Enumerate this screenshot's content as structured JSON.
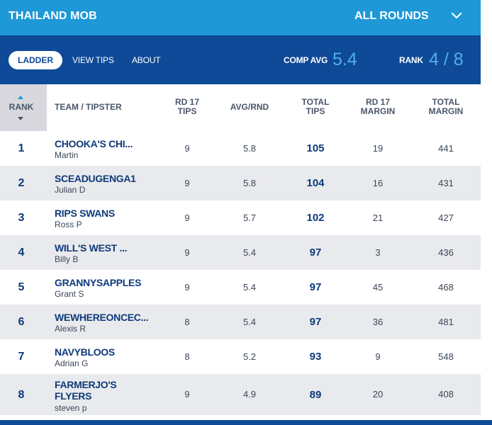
{
  "header": {
    "competition": "THAILAND MOB",
    "round_select": "ALL ROUNDS"
  },
  "nav": {
    "tabs": [
      "LADDER",
      "VIEW TIPS",
      "ABOUT"
    ],
    "comp_avg_label": "COMP AVG",
    "comp_avg_value": "5.4",
    "rank_label": "RANK",
    "rank_value": "4 / 8"
  },
  "table": {
    "headers": {
      "rank": "RANK",
      "team": "TEAM / TIPSTER",
      "rd_tips_1": "RD 17",
      "rd_tips_2": "TIPS",
      "avg": "AVG/RND",
      "total_tips_1": "TOTAL",
      "total_tips_2": "TIPS",
      "rd_margin_1": "RD 17",
      "rd_margin_2": "MARGIN",
      "total_margin_1": "TOTAL",
      "total_margin_2": "MARGIN"
    },
    "rows": [
      {
        "rank": "1",
        "team": "CHOOKA'S CHI...",
        "tipster": "Martin",
        "rd_tips": "9",
        "avg": "5.8",
        "total_tips": "105",
        "rd_margin": "19",
        "total_margin": "441"
      },
      {
        "rank": "2",
        "team": "SCEADUGENGA1",
        "tipster": "Julian D",
        "rd_tips": "9",
        "avg": "5.8",
        "total_tips": "104",
        "rd_margin": "16",
        "total_margin": "431"
      },
      {
        "rank": "3",
        "team": "RIPS SWANS",
        "tipster": "Ross P",
        "rd_tips": "9",
        "avg": "5.7",
        "total_tips": "102",
        "rd_margin": "21",
        "total_margin": "427"
      },
      {
        "rank": "4",
        "team": "WILL'S WEST ...",
        "tipster": "Billy B",
        "rd_tips": "9",
        "avg": "5.4",
        "total_tips": "97",
        "rd_margin": "3",
        "total_margin": "436"
      },
      {
        "rank": "5",
        "team": "GRANNYSAPPLES",
        "tipster": "Grant S",
        "rd_tips": "9",
        "avg": "5.4",
        "total_tips": "97",
        "rd_margin": "45",
        "total_margin": "468"
      },
      {
        "rank": "6",
        "team": "WEWHEREONCEC...",
        "tipster": "Alexis R",
        "rd_tips": "8",
        "avg": "5.4",
        "total_tips": "97",
        "rd_margin": "36",
        "total_margin": "481"
      },
      {
        "rank": "7",
        "team": "NAVYBLOOS",
        "tipster": "Adrian G",
        "rd_tips": "8",
        "avg": "5.2",
        "total_tips": "93",
        "rd_margin": "9",
        "total_margin": "548"
      },
      {
        "rank": "8",
        "team_line1": "FARMERJO'S",
        "team_line2": "FLYERS",
        "tipster": "steven p",
        "rd_tips": "9",
        "avg": "4.9",
        "total_tips": "89",
        "rd_margin": "20",
        "total_margin": "408"
      }
    ]
  },
  "colors": {
    "topbar": "#1e98d6",
    "navbar": "#0e4a97",
    "accent": "#4fb1ea",
    "row_alt": "#e9eaed"
  },
  "icons": {
    "round_dropdown": "chevron-down-icon",
    "sort": "sort-arrows-icon"
  }
}
